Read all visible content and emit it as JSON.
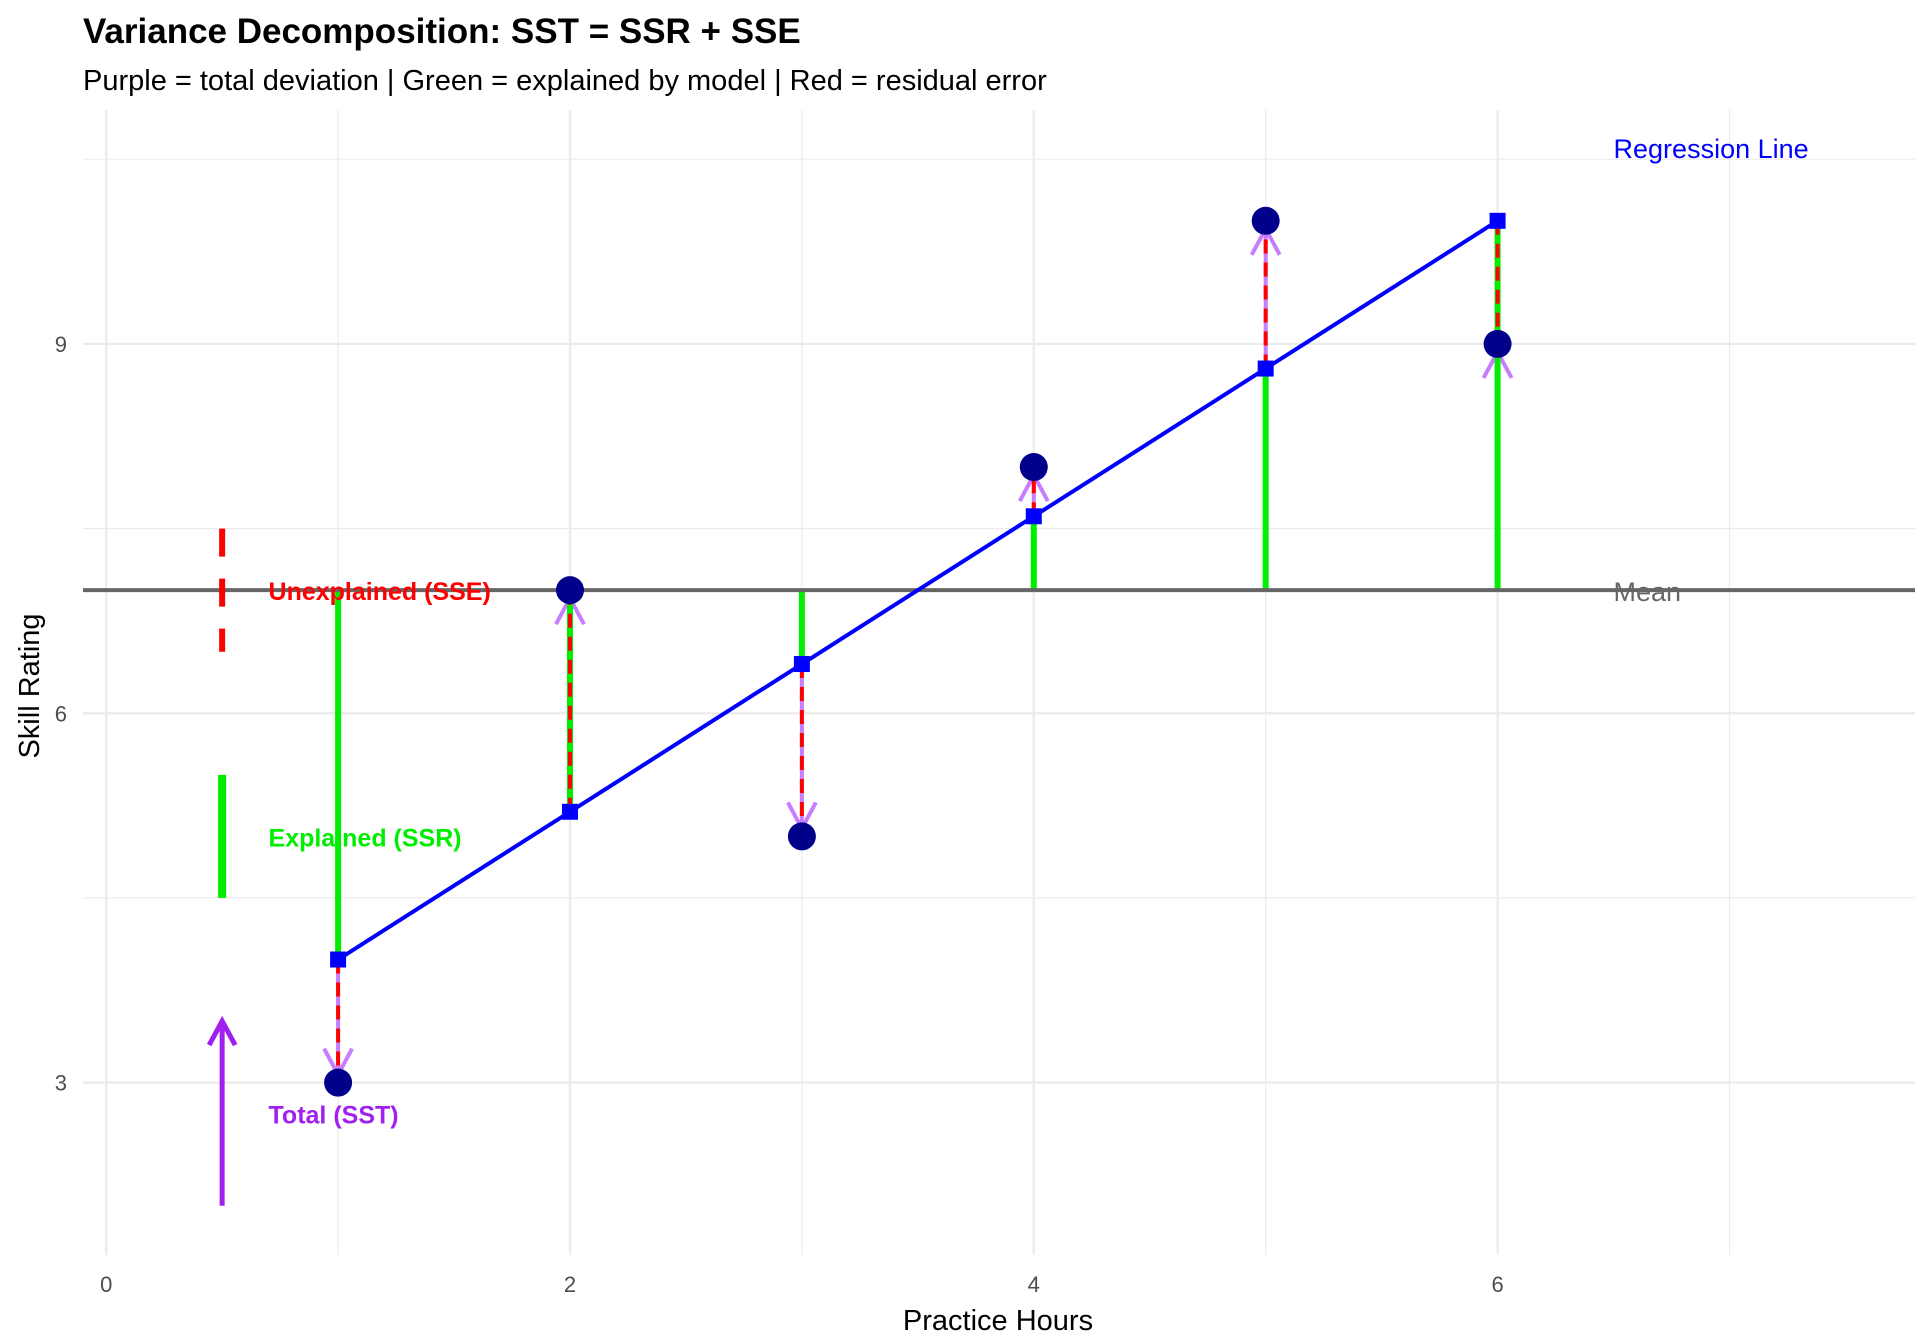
{
  "chart_data": {
    "type": "scatter",
    "title": "Variance Decomposition: SST = SSR + SSE",
    "subtitle": "Purple = total deviation | Green = explained by model | Red = residual error",
    "xlabel": "Practice Hours",
    "ylabel": "Skill Rating",
    "xlim": [
      -0.1,
      7.8
    ],
    "ylim": [
      1.6,
      10.9
    ],
    "x_ticks": [
      0,
      2,
      4,
      6
    ],
    "y_ticks": [
      3,
      6,
      9
    ],
    "grid": true,
    "mean": 7,
    "mean_label": "Mean",
    "regression": {
      "intercept": 2.8,
      "slope": 1.2,
      "label": "Regression Line"
    },
    "points": [
      {
        "x": 1,
        "y": 3
      },
      {
        "x": 2,
        "y": 7
      },
      {
        "x": 3,
        "y": 5
      },
      {
        "x": 4,
        "y": 8
      },
      {
        "x": 5,
        "y": 10
      },
      {
        "x": 6,
        "y": 9
      }
    ],
    "legend": [
      {
        "label": "Unexplained (SSE)",
        "color": "#ff0000",
        "style": "dashed"
      },
      {
        "label": "Explained (SSR)",
        "color": "#00ee00",
        "style": "solid"
      },
      {
        "label": "Total (SST)",
        "color": "#a020f0",
        "style": "arrow"
      }
    ],
    "colors": {
      "points": "#00008b",
      "regression": "#0000ff",
      "mean": "#666666",
      "total": "#a020f0",
      "total_arrow": "#c77dff",
      "explained": "#00ee00",
      "residual": "#ff0000",
      "grid": "#ebebeb"
    }
  }
}
